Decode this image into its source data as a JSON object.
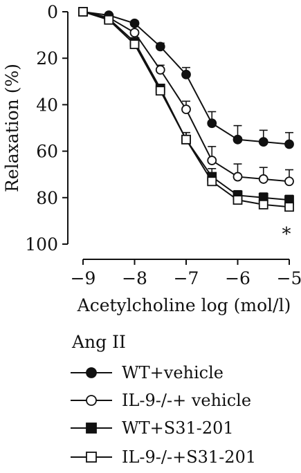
{
  "chart_data": {
    "type": "line",
    "xlabel": "Acetylcholine log (mol/l)",
    "ylabel": "Relaxation (%)",
    "x": [
      -9,
      -8.5,
      -8,
      -7.5,
      -7,
      -6.5,
      -6,
      -5.5,
      -5
    ],
    "xticks": [
      -9,
      -8,
      -7,
      -6,
      -5
    ],
    "xtick_labels": [
      "−9",
      "−8",
      "−7",
      "−6",
      "−5"
    ],
    "yticks": [
      0,
      20,
      40,
      60,
      80,
      100
    ],
    "ytick_labels": [
      "0",
      "20",
      "40",
      "60",
      "80",
      "100"
    ],
    "xlim": [
      -9,
      -5
    ],
    "ylim": [
      0,
      100
    ],
    "y_inverted": true,
    "grid": false,
    "legend_title": "Ang II",
    "legend_position": "bottom",
    "annotation": "*",
    "series": [
      {
        "name": "WT+vehicle",
        "marker": "filled-circle",
        "values": [
          0,
          1.5,
          5,
          15,
          27,
          48,
          55,
          56,
          57
        ],
        "errors": [
          0,
          0,
          1,
          1.5,
          3,
          5,
          6,
          5,
          5
        ]
      },
      {
        "name": "IL-9-/-+ vehicle",
        "marker": "open-circle",
        "values": [
          0,
          2.5,
          9,
          25,
          42,
          64,
          71,
          72,
          73
        ],
        "errors": [
          0,
          0,
          1,
          2,
          3.5,
          6,
          5.5,
          5,
          5
        ]
      },
      {
        "name": "WT+S31-201",
        "marker": "filled-square",
        "values": [
          0,
          3,
          13,
          33,
          55,
          71,
          79,
          80,
          81
        ],
        "errors": [
          0,
          0,
          1,
          1.5,
          3,
          3.5,
          2,
          2,
          2
        ]
      },
      {
        "name": "IL-9-/-+S31-201",
        "marker": "open-square",
        "values": [
          0,
          3.5,
          14,
          34,
          55,
          73,
          81,
          83,
          84
        ],
        "errors": [
          0,
          0,
          1,
          1.5,
          3,
          3,
          2,
          2,
          2
        ]
      }
    ]
  }
}
